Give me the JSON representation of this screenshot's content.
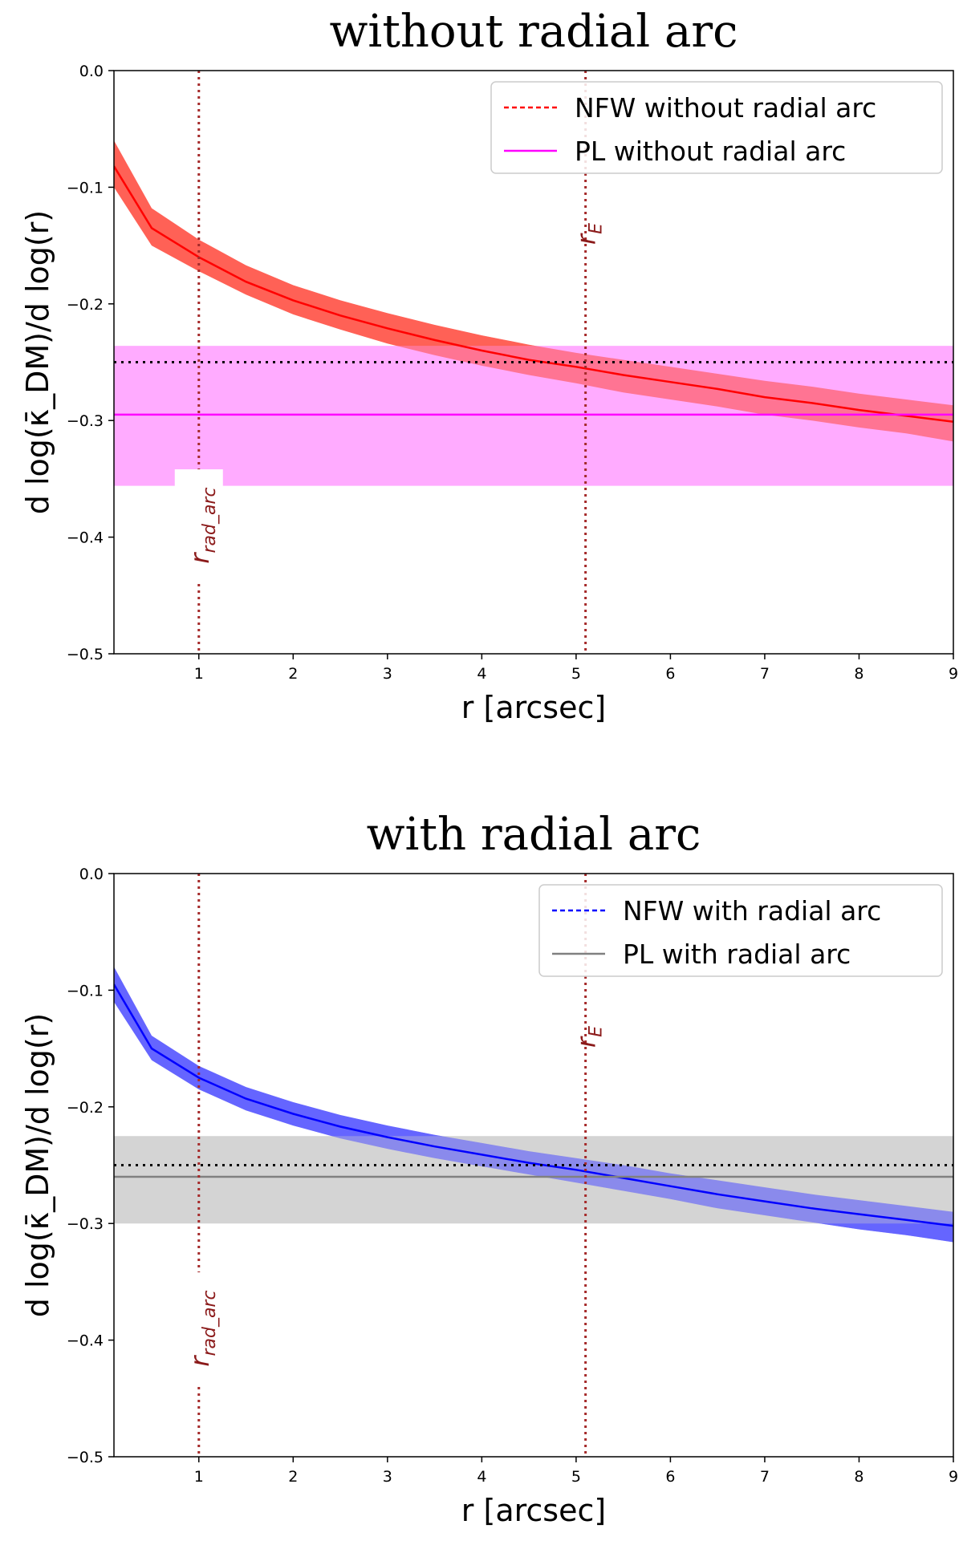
{
  "chart_data": [
    {
      "type": "line",
      "title": "without radial arc",
      "xlabel": "r [arcsec]",
      "ylabel": "d log(κ̄_DM)/d log(r)",
      "xlim": [
        0.1,
        9
      ],
      "ylim": [
        -0.5,
        0.0
      ],
      "xticks": [
        "1",
        "2",
        "3",
        "4",
        "5",
        "6",
        "7",
        "8",
        "9"
      ],
      "yticks": [
        "0.0",
        "−0.1",
        "−0.2",
        "−0.3",
        "−0.4",
        "−0.5"
      ],
      "legend_position": "top-right",
      "reference_line": {
        "y": -0.25,
        "color": "#000000",
        "style": "dotted"
      },
      "vertical_lines": [
        {
          "x": 1.0,
          "label_main": "r",
          "label_sub": "rad_arc",
          "color": "#a52a2a"
        },
        {
          "x": 5.1,
          "label_main": "r",
          "label_sub": "E",
          "color": "#a52a2a"
        }
      ],
      "series": [
        {
          "name": "NFW without radial arc",
          "legend_style": "dashed",
          "color": "#ff0000",
          "band_color": "#ff5a4f",
          "x": [
            0.1,
            0.5,
            1,
            1.5,
            2,
            2.5,
            3,
            3.5,
            4,
            4.5,
            5,
            5.5,
            6,
            6.5,
            7,
            7.5,
            8,
            8.5,
            9
          ],
          "y": [
            -0.082,
            -0.135,
            -0.16,
            -0.181,
            -0.197,
            -0.21,
            -0.221,
            -0.231,
            -0.24,
            -0.248,
            -0.254,
            -0.261,
            -0.267,
            -0.273,
            -0.28,
            -0.285,
            -0.291,
            -0.296,
            -0.301
          ],
          "lower": [
            -0.1,
            -0.15,
            -0.172,
            -0.192,
            -0.209,
            -0.222,
            -0.234,
            -0.244,
            -0.253,
            -0.261,
            -0.268,
            -0.276,
            -0.282,
            -0.288,
            -0.295,
            -0.3,
            -0.306,
            -0.311,
            -0.318
          ],
          "upper": [
            -0.06,
            -0.118,
            -0.145,
            -0.167,
            -0.184,
            -0.197,
            -0.208,
            -0.218,
            -0.227,
            -0.235,
            -0.242,
            -0.248,
            -0.254,
            -0.26,
            -0.266,
            -0.271,
            -0.277,
            -0.282,
            -0.287
          ]
        },
        {
          "name": "PL without radial arc",
          "legend_style": "solid",
          "color": "#ff00ff",
          "band_color": "#ff9cff",
          "x": [
            0.1,
            9
          ],
          "y": [
            -0.295,
            -0.295
          ],
          "lower": [
            -0.356,
            -0.356
          ],
          "upper": [
            -0.236,
            -0.236
          ]
        }
      ]
    },
    {
      "type": "line",
      "title": "with radial arc",
      "xlabel": "r [arcsec]",
      "ylabel": "d log(κ̄_DM)/d log(r)",
      "xlim": [
        0.1,
        9
      ],
      "ylim": [
        -0.5,
        0.0
      ],
      "xticks": [
        "1",
        "2",
        "3",
        "4",
        "5",
        "6",
        "7",
        "8",
        "9"
      ],
      "yticks": [
        "0.0",
        "−0.1",
        "−0.2",
        "−0.3",
        "−0.4",
        "−0.5"
      ],
      "legend_position": "top-right",
      "reference_line": {
        "y": -0.25,
        "color": "#000000",
        "style": "dotted"
      },
      "vertical_lines": [
        {
          "x": 1.0,
          "label_main": "r",
          "label_sub": "rad_arc",
          "color": "#a52a2a"
        },
        {
          "x": 5.1,
          "label_main": "r",
          "label_sub": "E",
          "color": "#a52a2a"
        }
      ],
      "series": [
        {
          "name": "NFW with radial arc",
          "legend_style": "dashed",
          "color": "#0000ff",
          "band_color": "#5e5eff",
          "x": [
            0.1,
            0.5,
            1,
            1.5,
            2,
            2.5,
            3,
            3.5,
            4,
            4.5,
            5,
            5.5,
            6,
            6.5,
            7,
            7.5,
            8,
            8.5,
            9
          ],
          "y": [
            -0.095,
            -0.15,
            -0.175,
            -0.193,
            -0.206,
            -0.217,
            -0.226,
            -0.234,
            -0.241,
            -0.248,
            -0.254,
            -0.261,
            -0.268,
            -0.275,
            -0.281,
            -0.287,
            -0.292,
            -0.297,
            -0.302
          ],
          "lower": [
            -0.11,
            -0.16,
            -0.185,
            -0.203,
            -0.216,
            -0.227,
            -0.236,
            -0.244,
            -0.251,
            -0.258,
            -0.265,
            -0.272,
            -0.279,
            -0.287,
            -0.293,
            -0.299,
            -0.305,
            -0.31,
            -0.316
          ],
          "upper": [
            -0.08,
            -0.139,
            -0.165,
            -0.183,
            -0.196,
            -0.207,
            -0.216,
            -0.224,
            -0.231,
            -0.238,
            -0.244,
            -0.25,
            -0.257,
            -0.263,
            -0.269,
            -0.275,
            -0.28,
            -0.285,
            -0.29
          ]
        },
        {
          "name": "PL with radial arc",
          "legend_style": "solid",
          "color": "#808080",
          "band_color": "#cccccc",
          "x": [
            0.1,
            9
          ],
          "y": [
            -0.26,
            -0.26
          ],
          "lower": [
            -0.3,
            -0.3
          ],
          "upper": [
            -0.225,
            -0.225
          ]
        }
      ]
    }
  ]
}
